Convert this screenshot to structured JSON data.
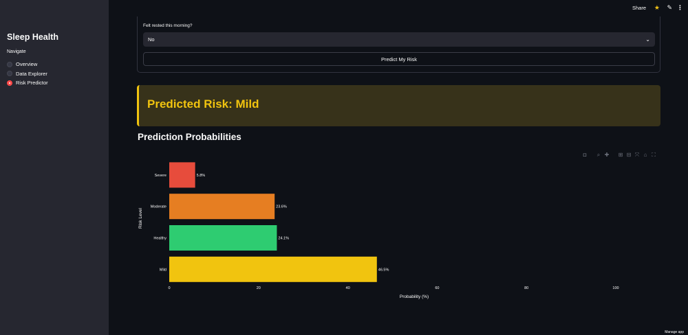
{
  "sidebar": {
    "title": "Sleep Health",
    "nav_label": "Navigate",
    "items": [
      {
        "label": "Overview",
        "selected": false
      },
      {
        "label": "Data Explorer",
        "selected": false
      },
      {
        "label": "Risk Predictor",
        "selected": true
      }
    ]
  },
  "topbar": {
    "share_label": "Share",
    "icons": [
      "star-icon",
      "pencil-icon",
      "more-vertical-icon"
    ]
  },
  "form": {
    "field_label": "Felt rested this morning?",
    "select_value": "No",
    "button_label": "Predict My Risk"
  },
  "result": {
    "text": "Predicted Risk: Mild",
    "accent": "#f1c40f"
  },
  "section_title": "Prediction Probabilities",
  "chart_toolbar": [
    "camera-icon",
    "zoom-icon",
    "pan-icon",
    "zoom-in-icon",
    "zoom-out-icon",
    "autoscale-icon",
    "home-icon",
    "fullscreen-icon"
  ],
  "chart_data": {
    "type": "bar",
    "orientation": "horizontal",
    "categories": [
      "Severe",
      "Moderate",
      "Healthy",
      "Mild"
    ],
    "values": [
      5.8,
      23.6,
      24.1,
      46.5
    ],
    "value_labels": [
      "5.8%",
      "23.6%",
      "24.1%",
      "46.5%"
    ],
    "colors": [
      "#e74c3c",
      "#e67e22",
      "#2ecc71",
      "#f1c40f"
    ],
    "xlabel": "Probability (%)",
    "ylabel": "Risk Level",
    "xlim": [
      0,
      110
    ],
    "xticks": [
      0,
      20,
      40,
      60,
      80,
      100
    ],
    "grid": false
  },
  "footer": {
    "manage_label": "Manage app"
  }
}
